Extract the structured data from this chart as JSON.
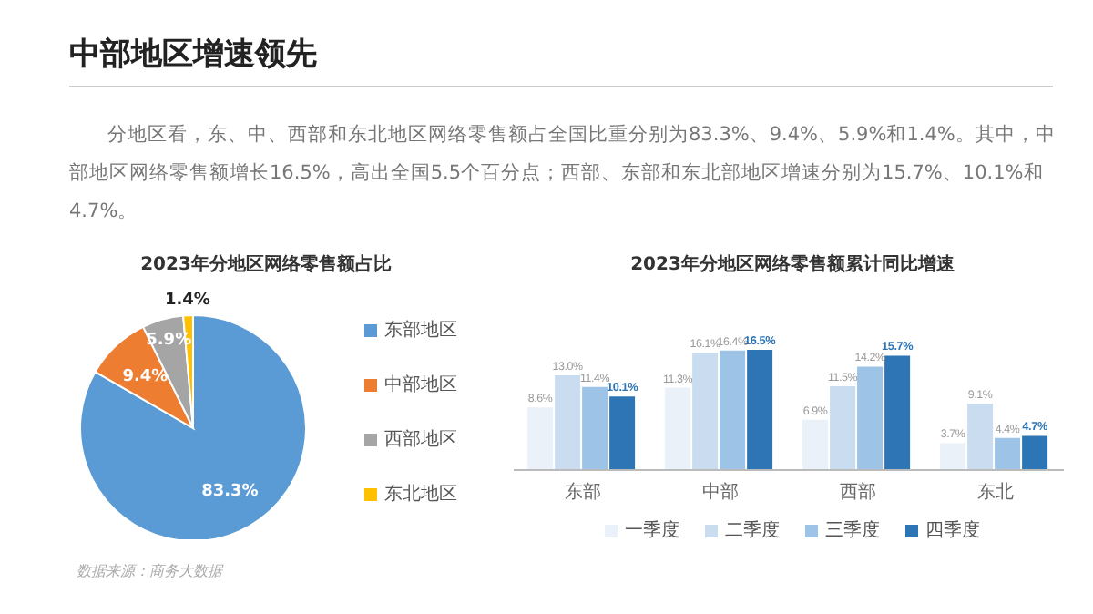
{
  "chart_data": [
    {
      "type": "pie",
      "title": "2023年分地区网络零售额占比",
      "annotations": [
        "中部地区增速领先",
        "分地区看，东、中、西部和东北地区网络零售额占全国比重分别为83.3%、9.4%、5.9%和1.4%。其中，中部地区网络零售额增长16.5%，高出全国5.5个百分点；西部、东部和东北部地区增速分别为15.7%、10.1%和4.7%。",
        "数据来源：商务大数据"
      ],
      "categories": [
        "东部地区",
        "中部地区",
        "西部地区",
        "东北地区"
      ],
      "values": [
        83.3,
        9.4,
        5.9,
        1.4
      ],
      "colors": [
        "#5b9bd5",
        "#ed7d31",
        "#a5a5a5",
        "#ffc000"
      ],
      "value_labels": [
        "83.3%",
        "9.4%",
        "5.9%",
        "1.4%"
      ],
      "legend": "right"
    },
    {
      "type": "bar",
      "title": "2023年分地区网络零售额累计同比增速",
      "categories": [
        "东部",
        "中部",
        "西部",
        "东北"
      ],
      "series": [
        {
          "name": "一季度",
          "color": "#eaf1f9",
          "values": [
            8.6,
            11.3,
            6.9,
            3.7
          ],
          "value_labels": [
            "8.6%",
            "11.3%",
            "6.9%",
            "3.7%"
          ]
        },
        {
          "name": "二季度",
          "color": "#c9dcf0",
          "values": [
            13.0,
            16.1,
            11.5,
            9.1
          ],
          "value_labels": [
            "13.0%",
            "16.1%",
            "11.5%",
            "9.1%"
          ]
        },
        {
          "name": "三季度",
          "color": "#9dc3e6",
          "values": [
            11.4,
            16.4,
            14.2,
            4.4
          ],
          "value_labels": [
            "11.4%",
            "16.4%",
            "14.2%",
            "4.4%"
          ]
        },
        {
          "name": "四季度",
          "color": "#2e75b6",
          "values": [
            10.1,
            16.5,
            15.7,
            4.7
          ],
          "value_labels": [
            "10.1%",
            "16.5%",
            "15.7%",
            "4.7%"
          ]
        }
      ],
      "legend": "bottom",
      "tick_labels": "x"
    }
  ]
}
